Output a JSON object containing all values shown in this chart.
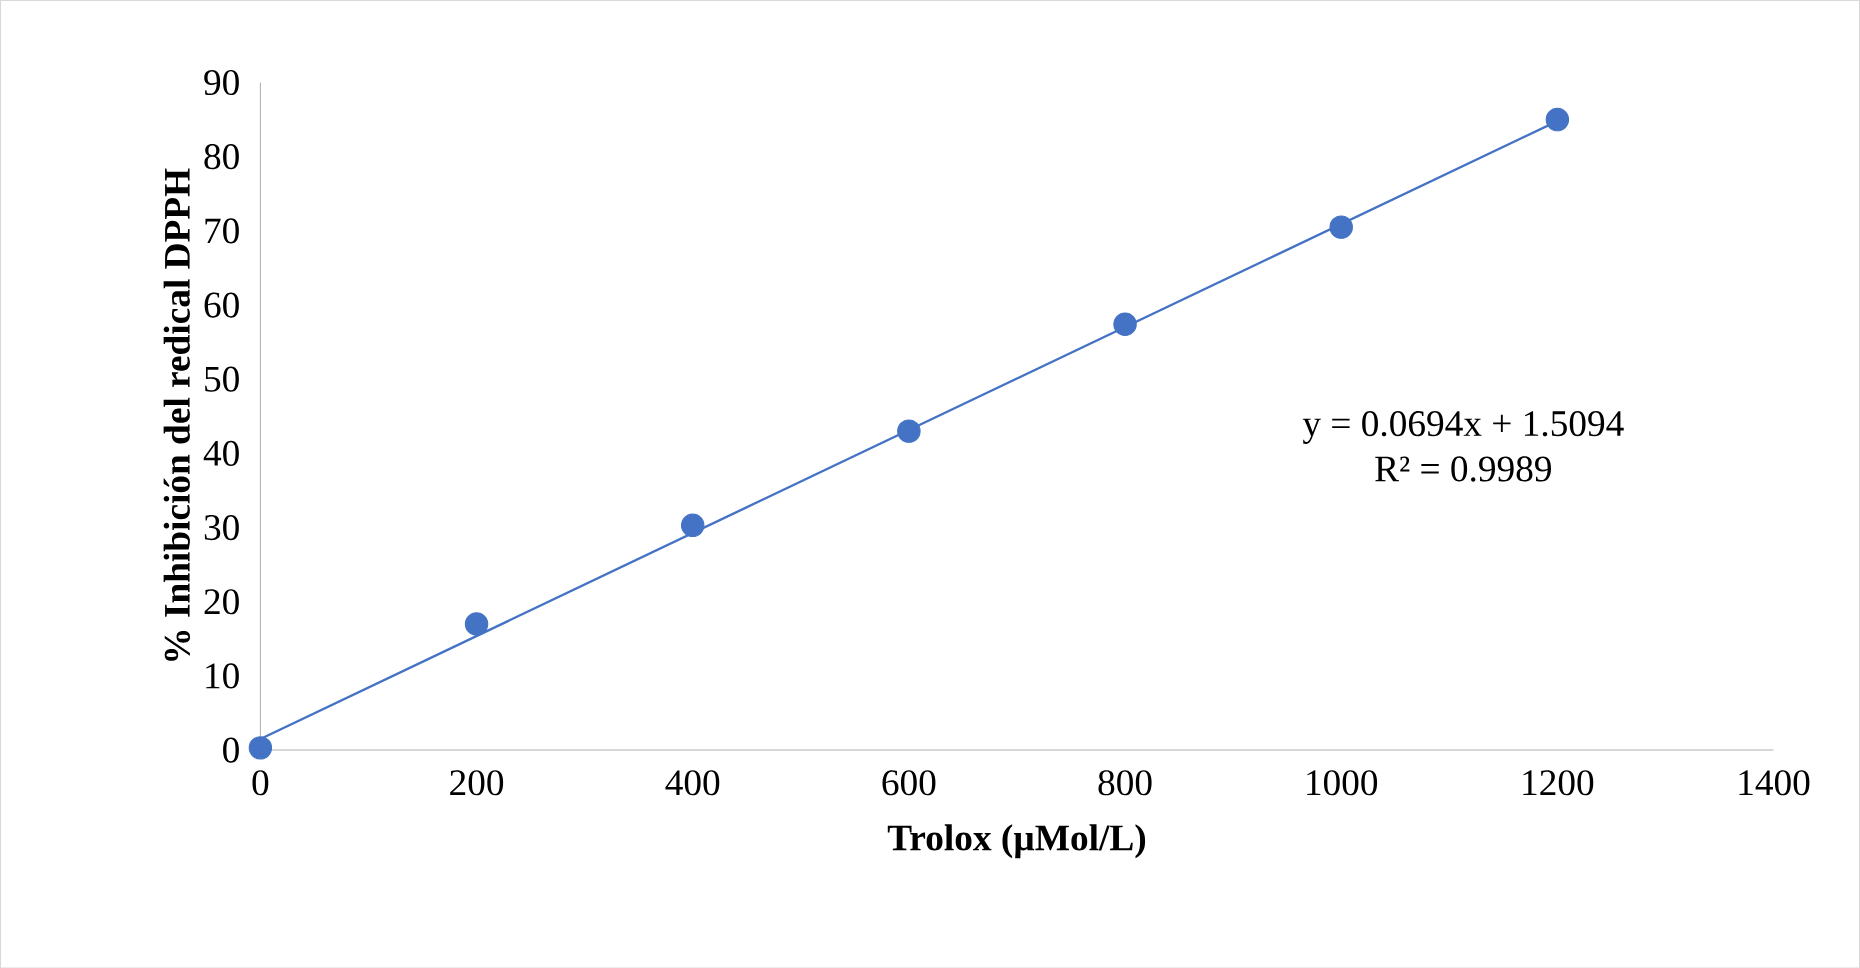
{
  "chart_data": {
    "type": "scatter",
    "xlabel": "Trolox (µMol/L)",
    "ylabel": "% Inhibición del redical DPPH",
    "xlim": [
      0,
      1400
    ],
    "xticks": [
      0,
      200,
      400,
      600,
      800,
      1000,
      1200,
      1400
    ],
    "ylim": [
      0,
      90
    ],
    "yticks": [
      0,
      10,
      20,
      30,
      40,
      50,
      60,
      70,
      80,
      90
    ],
    "series": [
      {
        "color": "#4472c4",
        "marker": "circle",
        "x": [
          0,
          200,
          400,
          600,
          800,
          1000,
          1200
        ],
        "values": [
          0.3,
          17,
          30.3,
          43,
          57.4,
          70.5,
          85
        ]
      },
      {
        "type": "line",
        "color": "#4472c4",
        "x": [
          0,
          1200
        ],
        "values": [
          1.5,
          84.8
        ]
      }
    ],
    "annotations": [
      "y = 0.0694x + 1.5094",
      "R² = 0.9989"
    ],
    "grid": false
  }
}
